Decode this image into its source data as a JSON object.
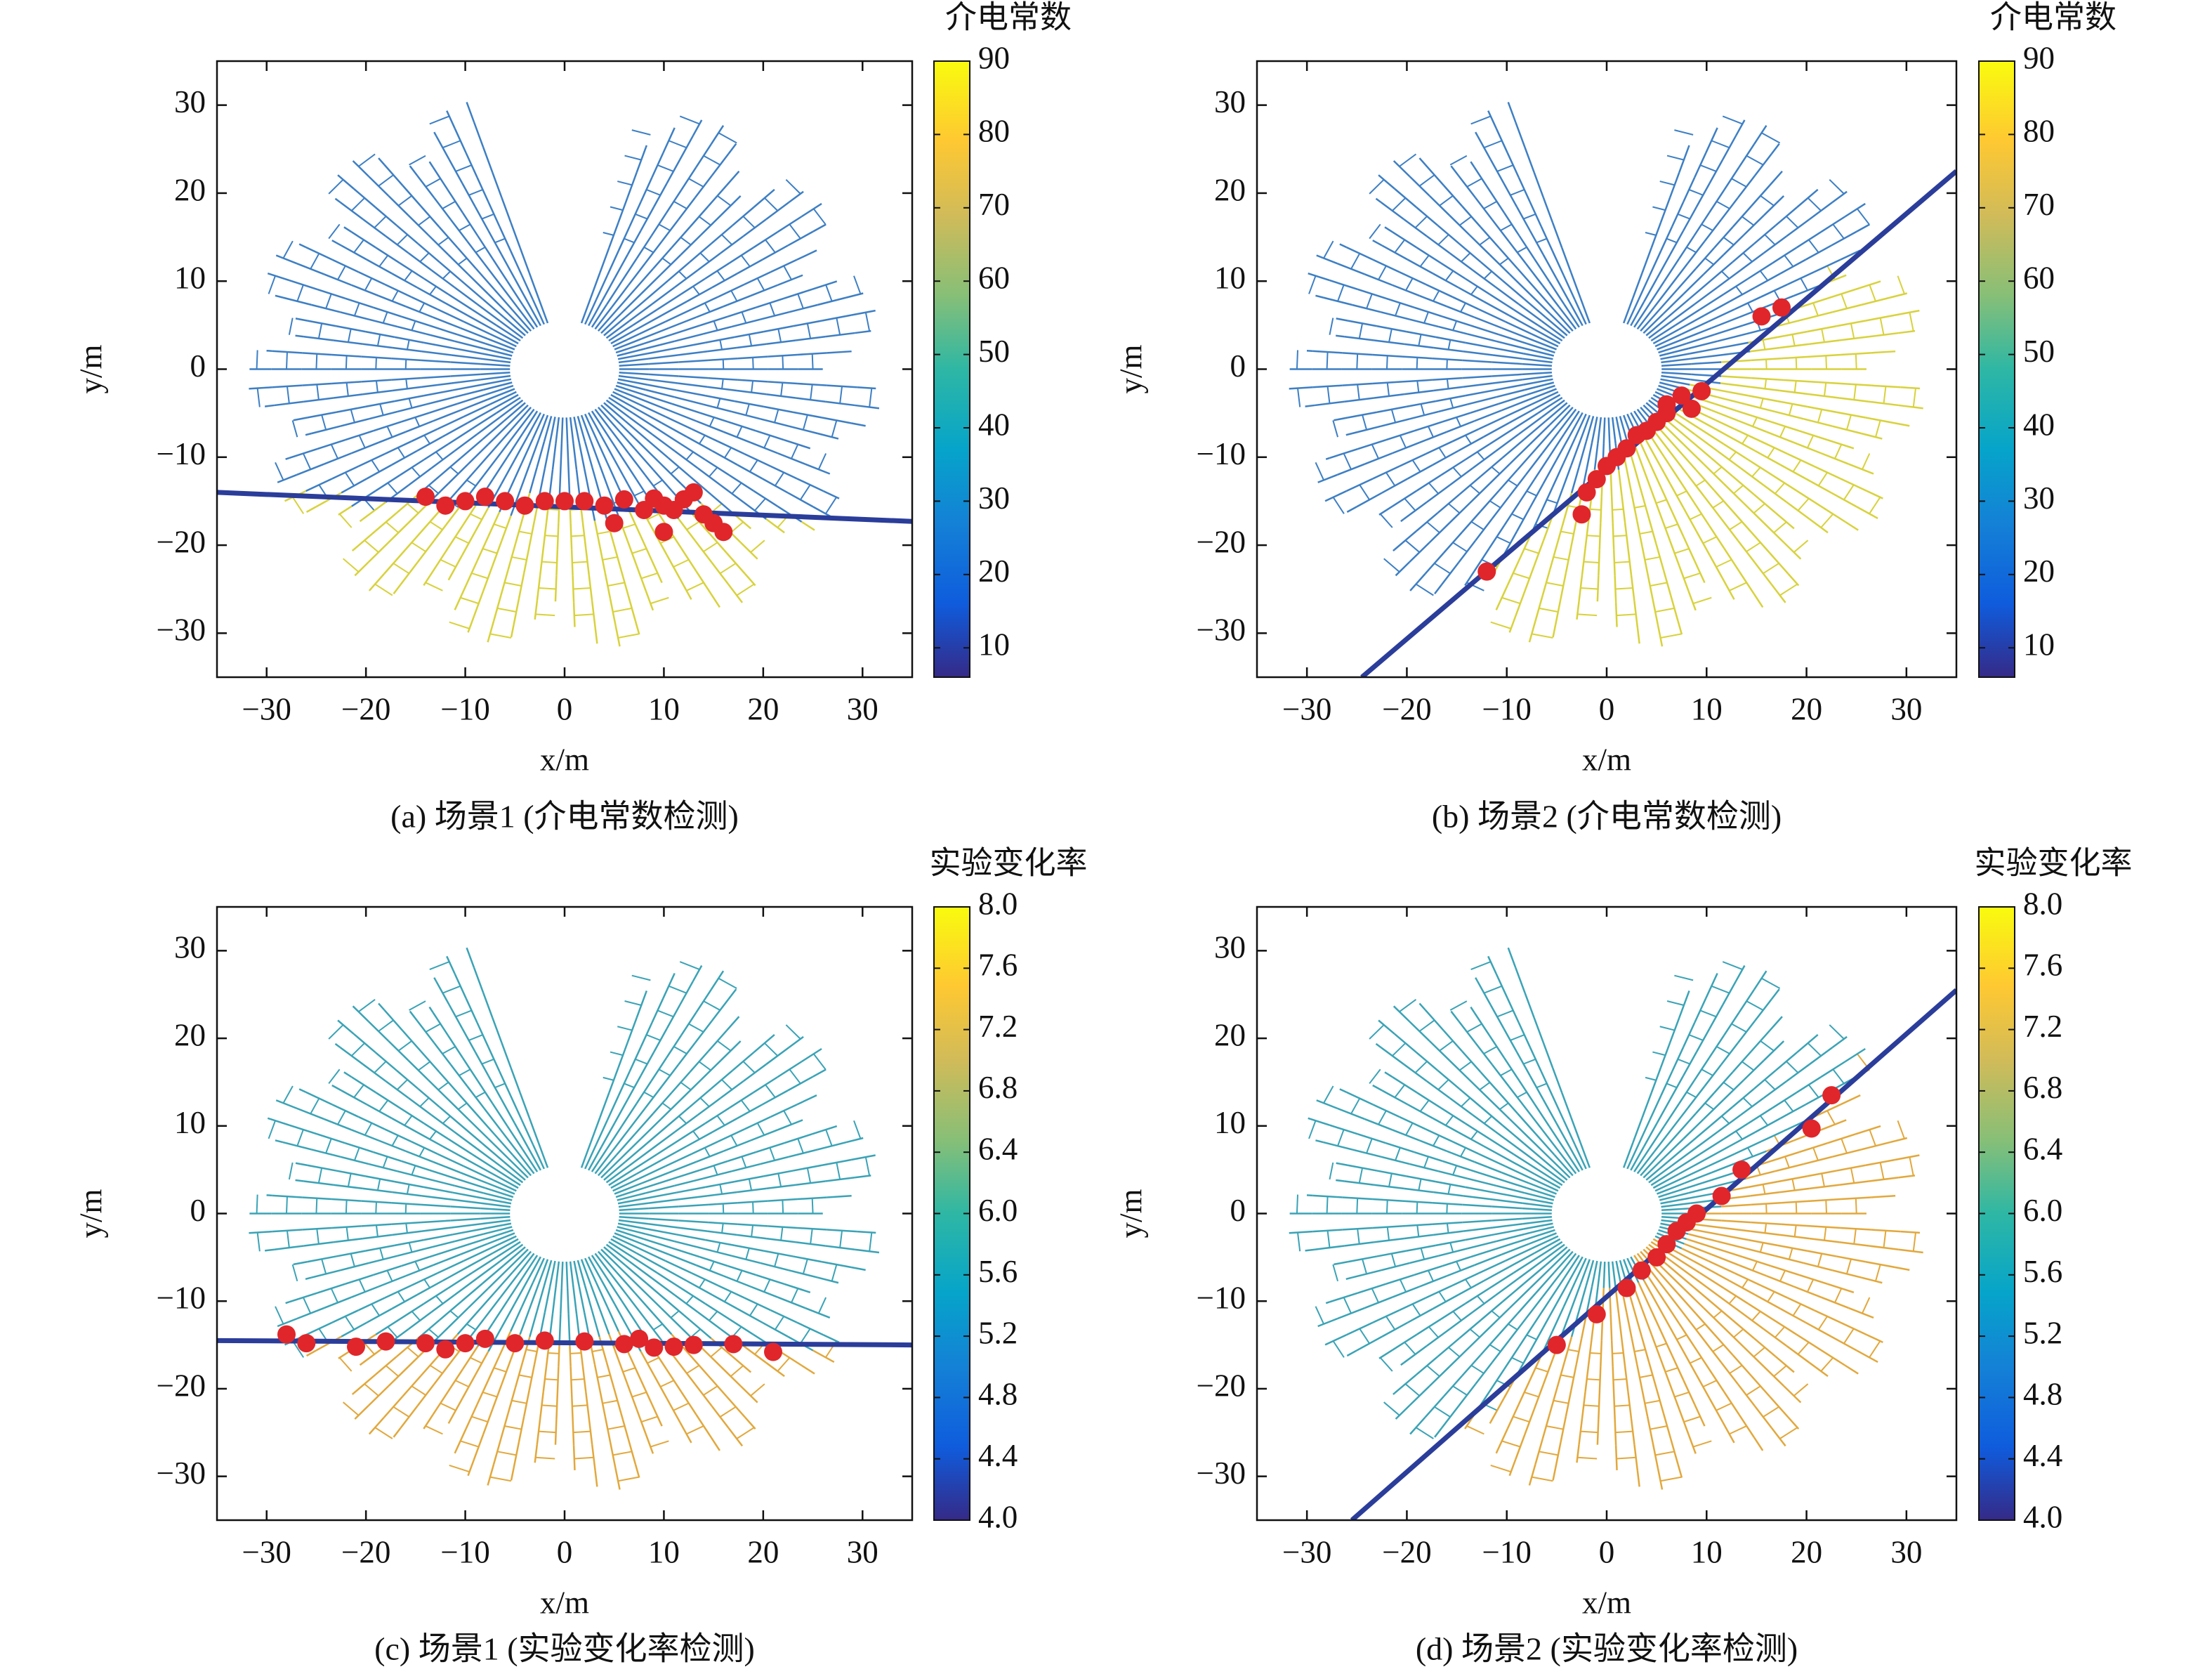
{
  "chart_data": [
    {
      "type": "scatter",
      "title": "(a) 场景1 (介电常数检测)",
      "xlabel": "x/m",
      "ylabel": "y/m",
      "xlim": [
        -35,
        35
      ],
      "ylim": [
        -35,
        35
      ],
      "xticks": [
        {
          "value": -30,
          "label": "−30"
        },
        {
          "value": -20,
          "label": "−20"
        },
        {
          "value": -10,
          "label": "−10"
        },
        0,
        10,
        20,
        30
      ],
      "yticks": [
        {
          "value": -30,
          "label": "−30"
        },
        {
          "value": -20,
          "label": "−20"
        },
        {
          "value": -10,
          "label": "−10"
        },
        0,
        10,
        20,
        30
      ],
      "colorbar": {
        "label": "介电常数",
        "lim": [
          6,
          90
        ],
        "ticks": [
          10,
          20,
          30,
          40,
          50,
          60,
          70,
          80,
          90
        ]
      },
      "series": [
        {
          "type": "line",
          "color": "#2b3d9a",
          "x": [
            -35,
            35
          ],
          "y": [
            -14,
            -17.3
          ]
        },
        {
          "type": "scatter",
          "color": "#e0262a",
          "x": [
            -14,
            -12,
            -10,
            -8,
            -6,
            -4,
            -2,
            0,
            2,
            4,
            6,
            8,
            9,
            10,
            11,
            12,
            13,
            14,
            15,
            10,
            16,
            5
          ],
          "y": [
            -14.5,
            -15.5,
            -15,
            -14.5,
            -15,
            -15.5,
            -15,
            -15,
            -15,
            -15.5,
            -14.8,
            -16,
            -14.7,
            -15.5,
            -16,
            -14.8,
            -14,
            -16.5,
            -17.5,
            -18.5,
            -18.5,
            -17.5
          ]
        }
      ]
    },
    {
      "type": "scatter",
      "title": "(b) 场景2 (介电常数检测)",
      "xlabel": "x/m",
      "ylabel": "y/m",
      "xlim": [
        -35,
        35
      ],
      "ylim": [
        -35,
        35
      ],
      "xticks": [
        {
          "value": -30,
          "label": "−30"
        },
        {
          "value": -20,
          "label": "−20"
        },
        {
          "value": -10,
          "label": "−10"
        },
        0,
        10,
        20,
        30
      ],
      "yticks": [
        {
          "value": -30,
          "label": "−30"
        },
        {
          "value": -20,
          "label": "−20"
        },
        {
          "value": -10,
          "label": "−10"
        },
        0,
        10,
        20,
        30
      ],
      "colorbar": {
        "label": "介电常数",
        "lim": [
          6,
          90
        ],
        "ticks": [
          10,
          20,
          30,
          40,
          50,
          60,
          70,
          80,
          90
        ]
      },
      "series": [
        {
          "type": "line",
          "color": "#2b3d9a",
          "x": [
            -24.5,
            35
          ],
          "y": [
            -35,
            22.5
          ]
        },
        {
          "type": "scatter",
          "color": "#e0262a",
          "x": [
            15.5,
            17.5,
            7.5,
            9.5,
            6,
            5,
            4,
            3,
            2,
            1,
            0,
            -1,
            -2,
            -2.5,
            -12,
            6,
            8.5
          ],
          "y": [
            6,
            7,
            -3,
            -2.5,
            -4,
            -6,
            -7,
            -7.5,
            -9,
            -10,
            -11,
            -12.5,
            -14,
            -16.5,
            -23,
            -5,
            -4.5
          ]
        }
      ]
    },
    {
      "type": "scatter",
      "title": "(c) 场景1 (实验变化率检测)",
      "xlabel": "x/m",
      "ylabel": "y/m",
      "xlim": [
        -35,
        35
      ],
      "ylim": [
        -35,
        35
      ],
      "xticks": [
        {
          "value": -30,
          "label": "−30"
        },
        {
          "value": -20,
          "label": "−20"
        },
        {
          "value": -10,
          "label": "−10"
        },
        0,
        10,
        20,
        30
      ],
      "yticks": [
        {
          "value": -30,
          "label": "−30"
        },
        {
          "value": -20,
          "label": "−20"
        },
        {
          "value": -10,
          "label": "−10"
        },
        0,
        10,
        20,
        30
      ],
      "colorbar": {
        "label": "实验变化率",
        "lim": [
          4,
          8
        ],
        "ticks": [
          {
            "value": 4,
            "label": "4.0"
          },
          4.4,
          4.8,
          5.2,
          5.6,
          {
            "value": 6,
            "label": "6.0"
          },
          6.4,
          6.8,
          7.2,
          7.6,
          {
            "value": 8,
            "label": "8.0"
          }
        ]
      },
      "series": [
        {
          "type": "line",
          "color": "#2b3d9a",
          "x": [
            -35,
            35
          ],
          "y": [
            -14.5,
            -15
          ]
        },
        {
          "type": "scatter",
          "color": "#e0262a",
          "x": [
            -28,
            -26,
            -21,
            -18,
            -14,
            -12,
            -10,
            -8,
            -5,
            -2,
            2,
            6,
            7.5,
            9,
            11,
            13,
            17,
            21
          ],
          "y": [
            -13.8,
            -14.8,
            -15.2,
            -14.6,
            -14.8,
            -15.5,
            -14.8,
            -14.3,
            -14.8,
            -14.5,
            -14.6,
            -14.9,
            -14.3,
            -15.3,
            -15.2,
            -15,
            -14.9,
            -15.8
          ]
        }
      ]
    },
    {
      "type": "scatter",
      "title": "(d) 场景2 (实验变化率检测)",
      "xlabel": "x/m",
      "ylabel": "y/m",
      "xlim": [
        -35,
        35
      ],
      "ylim": [
        -35,
        35
      ],
      "xticks": [
        {
          "value": -30,
          "label": "−30"
        },
        {
          "value": -20,
          "label": "−20"
        },
        {
          "value": -10,
          "label": "−10"
        },
        0,
        10,
        20,
        30
      ],
      "yticks": [
        {
          "value": -30,
          "label": "−30"
        },
        {
          "value": -20,
          "label": "−20"
        },
        {
          "value": -10,
          "label": "−10"
        },
        0,
        10,
        20,
        30
      ],
      "colorbar": {
        "label": "实验变化率",
        "lim": [
          4,
          8
        ],
        "ticks": [
          {
            "value": 4,
            "label": "4.0"
          },
          4.4,
          4.8,
          5.2,
          5.6,
          {
            "value": 6,
            "label": "6.0"
          },
          6.4,
          6.8,
          7.2,
          7.6,
          {
            "value": 8,
            "label": "8.0"
          }
        ]
      },
      "series": [
        {
          "type": "line",
          "color": "#2b3d9a",
          "x": [
            -25.5,
            35
          ],
          "y": [
            -35,
            25.5
          ]
        },
        {
          "type": "scatter",
          "color": "#e0262a",
          "x": [
            22.5,
            20.5,
            13.5,
            11.5,
            9,
            8,
            7,
            6,
            5,
            3.5,
            2,
            -5,
            -1
          ],
          "y": [
            13.5,
            9.7,
            5,
            2,
            0,
            -1,
            -2,
            -3.5,
            -5,
            -6.5,
            -8.5,
            -15,
            -11.5
          ]
        }
      ]
    }
  ]
}
